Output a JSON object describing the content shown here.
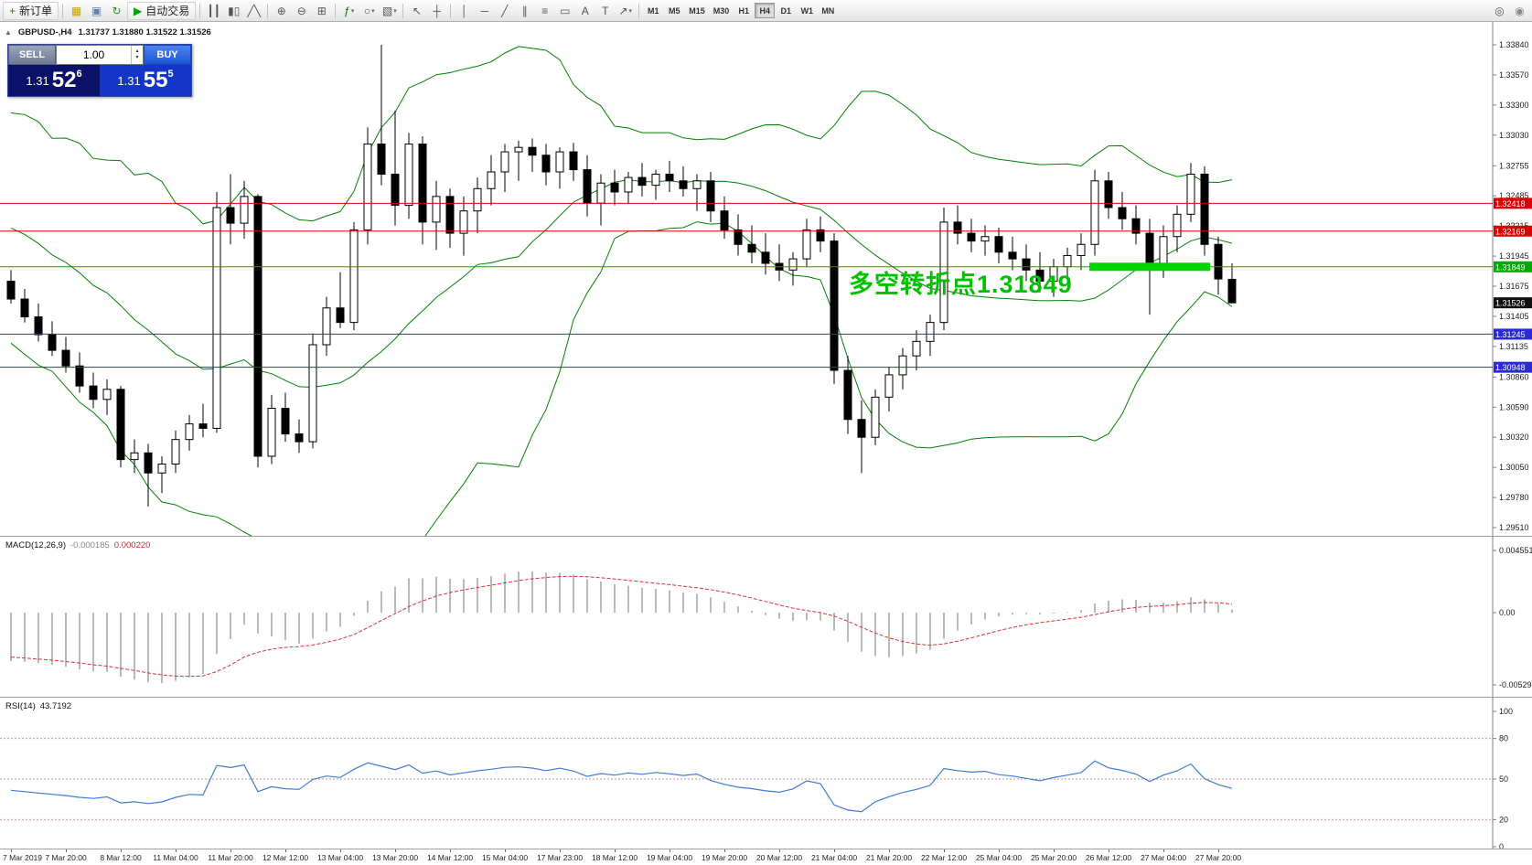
{
  "toolbar": {
    "caret_glyph": "▾",
    "active_timeframe": "H4",
    "items": [
      {
        "t": "btn",
        "name": "new-order-button",
        "g": "+",
        "c": "#009900",
        "label": "新订单"
      },
      {
        "t": "sep"
      },
      {
        "t": "icon",
        "name": "charts-grid-icon",
        "g": "▦",
        "c": "#c8a200"
      },
      {
        "t": "icon",
        "name": "profile-icon",
        "g": "▣",
        "c": "#5b7fb9"
      },
      {
        "t": "icon",
        "name": "refresh-icon",
        "g": "↻",
        "c": "#2e8b2e"
      },
      {
        "t": "btn",
        "name": "autotrading-button",
        "g": "▶",
        "c": "#00a000",
        "label": "自动交易"
      },
      {
        "t": "sep"
      },
      {
        "t": "icon",
        "name": "bar-chart-icon",
        "g": "┃┃"
      },
      {
        "t": "icon",
        "name": "candlestick-chart-icon",
        "g": "▮▯"
      },
      {
        "t": "icon",
        "name": "line-chart-icon",
        "g": "╱╲"
      },
      {
        "t": "sep"
      },
      {
        "t": "icon",
        "name": "zoom-in-icon",
        "g": "⊕"
      },
      {
        "t": "icon",
        "name": "zoom-out-icon",
        "g": "⊖"
      },
      {
        "t": "icon",
        "name": "tile-windows-icon",
        "g": "⊞"
      },
      {
        "t": "sep"
      },
      {
        "t": "icon",
        "name": "indicators-icon",
        "g": "ƒ",
        "c": "#007700",
        "caret": true
      },
      {
        "t": "icon",
        "name": "periods-icon",
        "g": "○",
        "caret": true
      },
      {
        "t": "icon",
        "name": "templates-icon",
        "g": "▧",
        "caret": true
      },
      {
        "t": "sep"
      },
      {
        "t": "icon",
        "name": "cursor-icon",
        "g": "↖"
      },
      {
        "t": "icon",
        "name": "crosshair-icon",
        "g": "┼"
      },
      {
        "t": "sep"
      },
      {
        "t": "icon",
        "name": "vertical-line-icon",
        "g": "│"
      },
      {
        "t": "icon",
        "name": "horizontal-line-icon",
        "g": "─"
      },
      {
        "t": "icon",
        "name": "trendline-icon",
        "g": "╱"
      },
      {
        "t": "icon",
        "name": "channel-icon",
        "g": "∥"
      },
      {
        "t": "icon",
        "name": "fibonacci-icon",
        "g": "≡"
      },
      {
        "t": "icon",
        "name": "shapes-icon",
        "g": "▭"
      },
      {
        "t": "icon",
        "name": "text-icon",
        "g": "A"
      },
      {
        "t": "icon",
        "name": "label-icon",
        "g": "T"
      },
      {
        "t": "icon",
        "name": "arrows-icon",
        "g": "↗",
        "caret": true
      },
      {
        "t": "sep"
      },
      {
        "t": "tf",
        "name": "timeframe-m1-button",
        "label": "M1"
      },
      {
        "t": "tf",
        "name": "timeframe-m5-button",
        "label": "M5"
      },
      {
        "t": "tf",
        "name": "timeframe-m15-button",
        "label": "M15"
      },
      {
        "t": "tf",
        "name": "timeframe-m30-button",
        "label": "M30"
      },
      {
        "t": "tf",
        "name": "timeframe-h1-button",
        "label": "H1"
      },
      {
        "t": "tf",
        "name": "timeframe-h4-button",
        "label": "H4"
      },
      {
        "t": "tf",
        "name": "timeframe-d1-button",
        "label": "D1"
      },
      {
        "t": "tf",
        "name": "timeframe-w1-button",
        "label": "W1"
      },
      {
        "t": "tf",
        "name": "timeframe-mn-button",
        "label": "MN"
      },
      {
        "t": "space"
      },
      {
        "t": "icon",
        "name": "search-icon",
        "g": "◎"
      },
      {
        "t": "icon",
        "name": "community-icon",
        "g": "◉",
        "c": "#888888"
      }
    ]
  },
  "chart": {
    "collapse_glyph": "▲",
    "symbol_period": "GBPUSD-,H4",
    "ohlc_text": "1.31737 1.31880 1.31522 1.31526",
    "annotation": "多空转折点1.31849"
  },
  "quote": {
    "sell_label": "SELL",
    "buy_label": "BUY",
    "volume": "1.00",
    "spin_up": "▴",
    "spin_down": "▾",
    "sell_main": "1.31",
    "sell_big": "52",
    "sell_sup": "6",
    "buy_main": "1.31",
    "buy_big": "55",
    "buy_sup": "5"
  },
  "price_axis": {
    "labels": [
      "1.33840",
      "1.33570",
      "1.33300",
      "1.33030",
      "1.32755",
      "1.32485",
      "1.32215",
      "1.31945",
      "1.31675",
      "1.31405",
      "1.31135",
      "1.30860",
      "1.30590",
      "1.30320",
      "1.30050",
      "1.29780",
      "1.29510"
    ]
  },
  "macd": {
    "label": "MACD(12,26,9)",
    "main_value": "-0.000185",
    "signal_value": "0.000220",
    "axis": [
      "0.004551",
      "0.00",
      "-0.005295"
    ]
  },
  "rsi": {
    "label": "RSI(14)",
    "value": "43.7192",
    "axis": [
      "100",
      "80",
      "50",
      "20",
      "0"
    ]
  },
  "time_axis": {
    "labels": [
      "7 Mar 2019",
      "7 Mar 20:00",
      "8 Mar 12:00",
      "11 Mar 04:00",
      "11 Mar 20:00",
      "12 Mar 12:00",
      "13 Mar 04:00",
      "13 Mar 20:00",
      "14 Mar 12:00",
      "15 Mar 04:00",
      "17 Mar 23:00",
      "18 Mar 12:00",
      "19 Mar 04:00",
      "19 Mar 20:00",
      "20 Mar 12:00",
      "21 Mar 04:00",
      "21 Mar 20:00",
      "22 Mar 12:00",
      "25 Mar 04:00",
      "25 Mar 20:00",
      "26 Mar 12:00",
      "27 Mar 04:00",
      "27 Mar 20:00"
    ]
  },
  "chart_data": {
    "type": "candlestick",
    "symbol": "GBPUSD-",
    "period": "H4",
    "ylim": [
      1.2951,
      1.3384
    ],
    "current_bid": 1.31526,
    "hlines": [
      {
        "price": 1.32418,
        "label": "1.32418",
        "color": "#dd0000"
      },
      {
        "price": 1.32169,
        "label": "1.32169",
        "color": "#dd0000"
      },
      {
        "price": 1.31849,
        "label": "1.31849",
        "color": "#00aa00"
      },
      {
        "price": 1.31245,
        "label": "1.31245",
        "color": "#2b2bd4"
      },
      {
        "price": 1.30948,
        "label": "1.30948",
        "color": "#2b2bd4"
      }
    ],
    "highlight_box": {
      "price": 1.31849,
      "start_index": 79,
      "end_index": 87,
      "color": "#00d300"
    },
    "indicators": {
      "bollinger": {
        "period": 20,
        "deviation": 2,
        "color": "#008000"
      },
      "macd": {
        "params": [
          12,
          26,
          9
        ],
        "main": -0.000185,
        "signal": 0.00022,
        "axis_max": 0.004551,
        "axis_min": -0.005295
      },
      "rsi": {
        "period": 14,
        "value": 43.7192,
        "levels": [
          80,
          50,
          20
        ]
      }
    },
    "ohlc": [
      [
        1.3172,
        1.3182,
        1.3152,
        1.3156
      ],
      [
        1.3156,
        1.3165,
        1.3135,
        1.314
      ],
      [
        1.314,
        1.3152,
        1.3118,
        1.3124
      ],
      [
        1.3124,
        1.3136,
        1.3105,
        1.311
      ],
      [
        1.311,
        1.3122,
        1.309,
        1.3096
      ],
      [
        1.3096,
        1.3108,
        1.3072,
        1.3078
      ],
      [
        1.3078,
        1.309,
        1.3058,
        1.3066
      ],
      [
        1.3066,
        1.3084,
        1.3052,
        1.3075
      ],
      [
        1.3075,
        1.3078,
        1.3005,
        1.3012
      ],
      [
        1.3012,
        1.303,
        1.3,
        1.3018
      ],
      [
        1.3018,
        1.3026,
        1.297,
        1.3
      ],
      [
        1.3,
        1.3015,
        1.2982,
        1.3008
      ],
      [
        1.3008,
        1.3038,
        1.3,
        1.303
      ],
      [
        1.303,
        1.3052,
        1.302,
        1.3044
      ],
      [
        1.3044,
        1.3062,
        1.3032,
        1.304
      ],
      [
        1.304,
        1.3252,
        1.3036,
        1.3238
      ],
      [
        1.3238,
        1.3268,
        1.3205,
        1.3224
      ],
      [
        1.3224,
        1.3262,
        1.321,
        1.3248
      ],
      [
        1.3248,
        1.325,
        1.3005,
        1.3015
      ],
      [
        1.3015,
        1.307,
        1.3008,
        1.3058
      ],
      [
        1.3058,
        1.3072,
        1.3028,
        1.3035
      ],
      [
        1.3035,
        1.3048,
        1.3018,
        1.3028
      ],
      [
        1.3028,
        1.3125,
        1.3022,
        1.3115
      ],
      [
        1.3115,
        1.3158,
        1.3105,
        1.3148
      ],
      [
        1.3148,
        1.318,
        1.313,
        1.3135
      ],
      [
        1.3135,
        1.3225,
        1.3128,
        1.3218
      ],
      [
        1.3218,
        1.331,
        1.3205,
        1.3295
      ],
      [
        1.3295,
        1.3384,
        1.3258,
        1.3268
      ],
      [
        1.3268,
        1.3325,
        1.3222,
        1.324
      ],
      [
        1.324,
        1.3305,
        1.3228,
        1.3295
      ],
      [
        1.3295,
        1.3302,
        1.3205,
        1.3225
      ],
      [
        1.3225,
        1.3262,
        1.32,
        1.3248
      ],
      [
        1.3248,
        1.3255,
        1.3202,
        1.3215
      ],
      [
        1.3215,
        1.3248,
        1.3195,
        1.3235
      ],
      [
        1.3235,
        1.3265,
        1.3215,
        1.3255
      ],
      [
        1.3255,
        1.3285,
        1.324,
        1.327
      ],
      [
        1.327,
        1.3295,
        1.3252,
        1.3288
      ],
      [
        1.3288,
        1.3298,
        1.3262,
        1.3292
      ],
      [
        1.3292,
        1.33,
        1.327,
        1.3285
      ],
      [
        1.3285,
        1.3295,
        1.3258,
        1.327
      ],
      [
        1.327,
        1.3292,
        1.3255,
        1.3288
      ],
      [
        1.3288,
        1.3296,
        1.3262,
        1.3272
      ],
      [
        1.3272,
        1.3285,
        1.323,
        1.3242
      ],
      [
        1.3242,
        1.3268,
        1.3222,
        1.326
      ],
      [
        1.326,
        1.3272,
        1.324,
        1.3252
      ],
      [
        1.3252,
        1.327,
        1.3242,
        1.3265
      ],
      [
        1.3265,
        1.3278,
        1.3248,
        1.3258
      ],
      [
        1.3258,
        1.3272,
        1.3245,
        1.3268
      ],
      [
        1.3268,
        1.328,
        1.3252,
        1.3262
      ],
      [
        1.3262,
        1.3275,
        1.3248,
        1.3255
      ],
      [
        1.3255,
        1.3268,
        1.3235,
        1.3262
      ],
      [
        1.3262,
        1.327,
        1.3225,
        1.3235
      ],
      [
        1.3235,
        1.3248,
        1.321,
        1.3218
      ],
      [
        1.3218,
        1.3232,
        1.3195,
        1.3205
      ],
      [
        1.3205,
        1.3222,
        1.3188,
        1.3198
      ],
      [
        1.3198,
        1.3215,
        1.3178,
        1.3188
      ],
      [
        1.3188,
        1.3205,
        1.3172,
        1.3182
      ],
      [
        1.3182,
        1.3198,
        1.3168,
        1.3192
      ],
      [
        1.3192,
        1.3228,
        1.3185,
        1.3218
      ],
      [
        1.3218,
        1.323,
        1.3198,
        1.3208
      ],
      [
        1.3208,
        1.3215,
        1.308,
        1.3092
      ],
      [
        1.3092,
        1.3105,
        1.3035,
        1.3048
      ],
      [
        1.3048,
        1.3065,
        1.3,
        1.3032
      ],
      [
        1.3032,
        1.3075,
        1.3025,
        1.3068
      ],
      [
        1.3068,
        1.3095,
        1.3055,
        1.3088
      ],
      [
        1.3088,
        1.3112,
        1.3075,
        1.3105
      ],
      [
        1.3105,
        1.3128,
        1.3092,
        1.3118
      ],
      [
        1.3118,
        1.3142,
        1.3105,
        1.3135
      ],
      [
        1.3135,
        1.3238,
        1.3128,
        1.3225
      ],
      [
        1.3225,
        1.324,
        1.3205,
        1.3215
      ],
      [
        1.3215,
        1.3228,
        1.3198,
        1.3208
      ],
      [
        1.3208,
        1.3222,
        1.3195,
        1.3212
      ],
      [
        1.3212,
        1.322,
        1.3188,
        1.3198
      ],
      [
        1.3198,
        1.3212,
        1.3182,
        1.3192
      ],
      [
        1.3192,
        1.3205,
        1.3172,
        1.3182
      ],
      [
        1.3182,
        1.3198,
        1.3162,
        1.3172
      ],
      [
        1.3172,
        1.3192,
        1.3158,
        1.3185
      ],
      [
        1.3185,
        1.3202,
        1.3172,
        1.3195
      ],
      [
        1.3195,
        1.3215,
        1.3182,
        1.3205
      ],
      [
        1.3205,
        1.3272,
        1.3195,
        1.3262
      ],
      [
        1.3262,
        1.327,
        1.3228,
        1.3238
      ],
      [
        1.3238,
        1.3252,
        1.3218,
        1.3228
      ],
      [
        1.3228,
        1.324,
        1.3205,
        1.3215
      ],
      [
        1.3215,
        1.3228,
        1.3142,
        1.3185
      ],
      [
        1.3185,
        1.3222,
        1.3175,
        1.3212
      ],
      [
        1.3212,
        1.324,
        1.3198,
        1.3232
      ],
      [
        1.3232,
        1.3278,
        1.3225,
        1.3268
      ],
      [
        1.3268,
        1.3275,
        1.3195,
        1.3205
      ],
      [
        1.3205,
        1.3212,
        1.316,
        1.3174
      ],
      [
        1.31737,
        1.3188,
        1.31522,
        1.31526
      ]
    ]
  }
}
